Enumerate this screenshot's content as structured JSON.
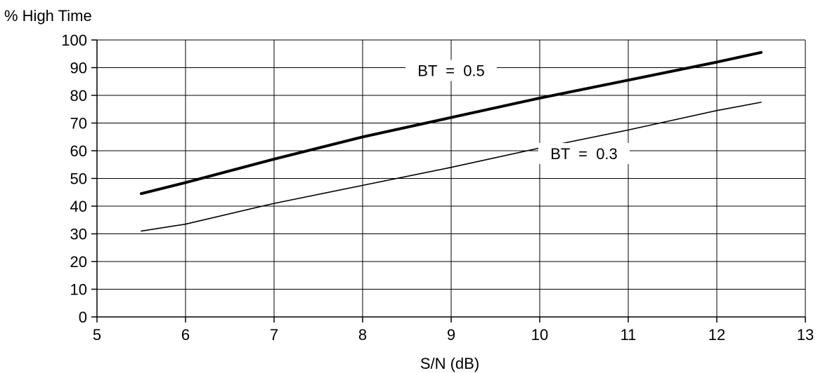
{
  "chart_data": {
    "type": "line",
    "title": "",
    "ylabel": "% High Time",
    "xlabel": "S/N  (dB)",
    "xlim": [
      5,
      13
    ],
    "ylim": [
      0,
      100
    ],
    "x_ticks": [
      "5",
      "6",
      "7",
      "8",
      "9",
      "10",
      "11",
      "12",
      "13"
    ],
    "y_ticks": [
      "0",
      "10",
      "20",
      "30",
      "40",
      "50",
      "60",
      "70",
      "80",
      "90",
      "100"
    ],
    "grid": true,
    "legend": "none",
    "series": [
      {
        "name": "BT = 0.5",
        "color": "#000000",
        "line": "thick",
        "x": [
          5.5,
          6,
          7,
          8,
          9,
          10,
          11,
          12,
          12.5
        ],
        "y": [
          44.5,
          48.5,
          57,
          65,
          72,
          79,
          85.5,
          92,
          95.5
        ]
      },
      {
        "name": "BT = 0.3",
        "color": "#000000",
        "line": "thin",
        "x": [
          5.5,
          6,
          7,
          8,
          9,
          10,
          11,
          12,
          12.5
        ],
        "y": [
          31,
          33.5,
          41,
          47.5,
          54,
          61,
          67.5,
          74.5,
          77.5
        ]
      }
    ],
    "annotations": [
      {
        "text": "BT  =  0.5",
        "series": 0,
        "x": 9.0,
        "y": 89
      },
      {
        "text": "BT  =  0.3",
        "series": 1,
        "x": 10.5,
        "y": 59
      }
    ]
  }
}
